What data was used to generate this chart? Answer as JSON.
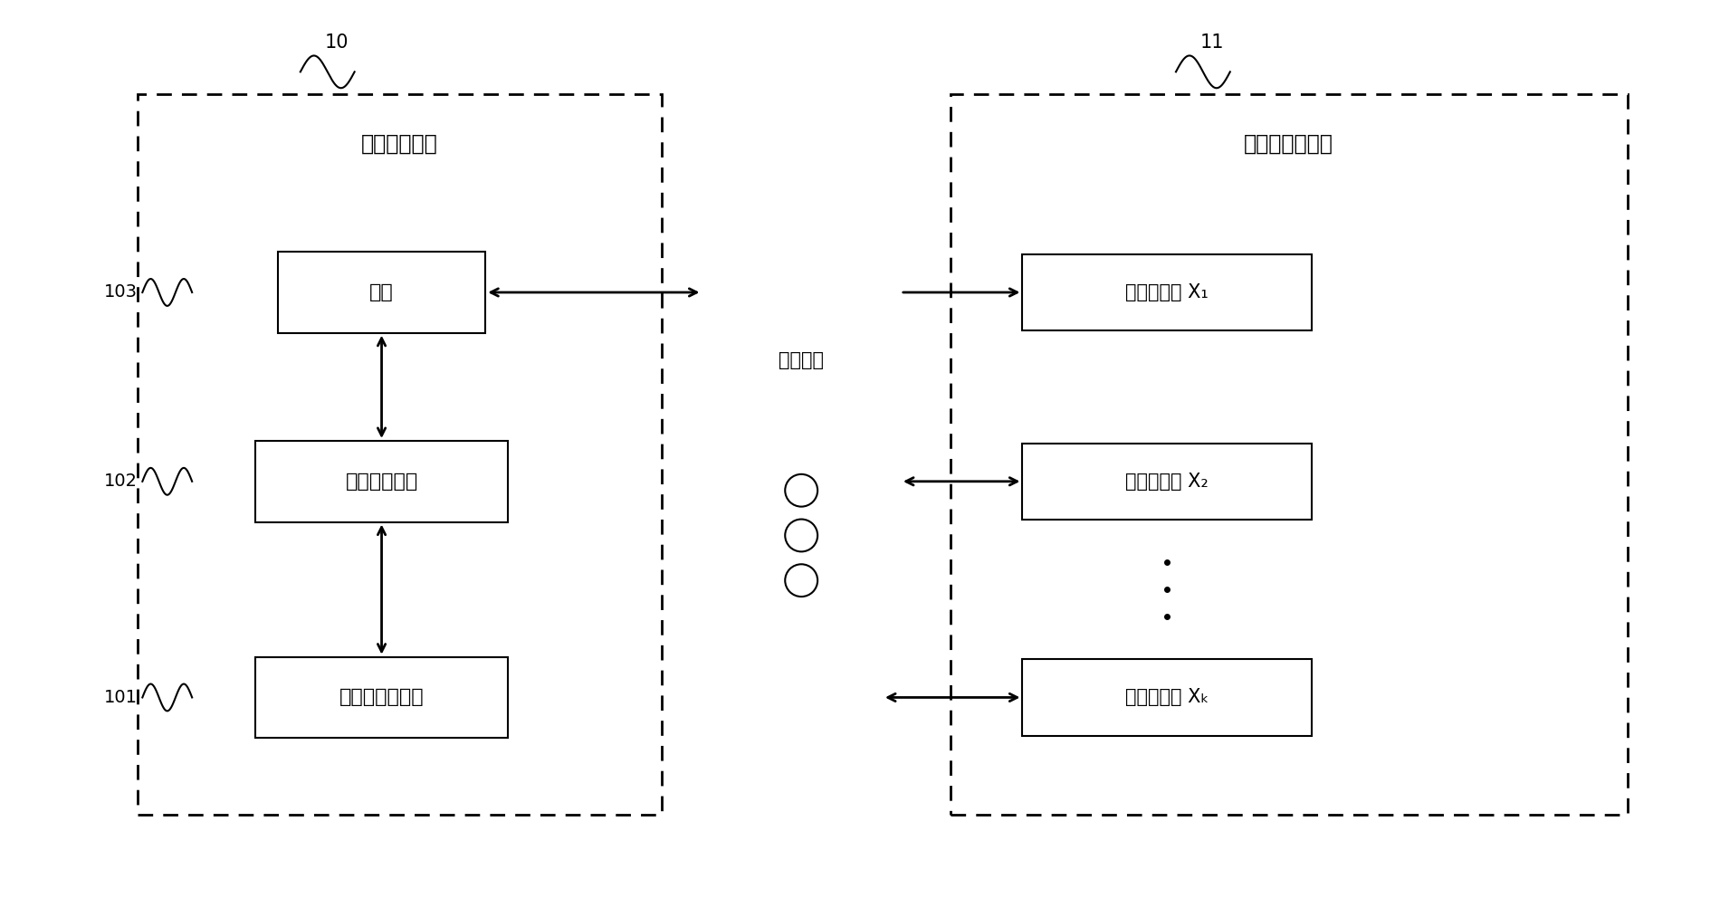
{
  "bg_color": "#ffffff",
  "fig_width": 19.0,
  "fig_height": 9.92,
  "left_box_label": "测量控刻中心",
  "right_box_label": "田间雨量称重仪",
  "label_10": "10",
  "label_11": "11",
  "label_101": "101",
  "label_102": "102",
  "label_103": "103",
  "box_antenna": "天线",
  "box_wireless_unit": "无线通讯单元",
  "box_base_station": "基站计算机系统",
  "cloud_label": "无线传输",
  "sensor_x1": "雨量称重仪 X₁",
  "sensor_x2": "雨量称重仪 X₂",
  "sensor_xk": "雨量称重仪 Xₖ"
}
